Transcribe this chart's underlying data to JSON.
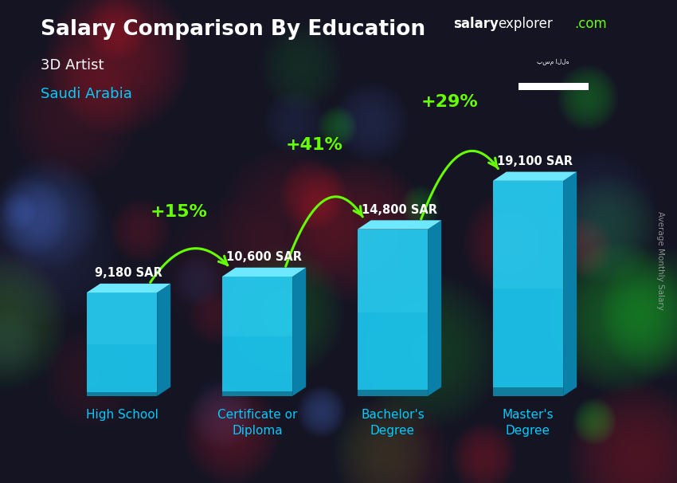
{
  "title": "Salary Comparison By Education",
  "subtitle_job": "3D Artist",
  "subtitle_country": "Saudi Arabia",
  "ylabel": "Average Monthly Salary",
  "categories": [
    "High School",
    "Certificate or\nDiploma",
    "Bachelor's\nDegree",
    "Master's\nDegree"
  ],
  "values": [
    9180,
    10600,
    14800,
    19100
  ],
  "value_labels": [
    "9,180 SAR",
    "10,600 SAR",
    "14,800 SAR",
    "19,100 SAR"
  ],
  "pct_changes": [
    "+15%",
    "+41%",
    "+29%"
  ],
  "bar_front_color": "#1cc8f0",
  "bar_side_color": "#0a7fa8",
  "bar_top_color": "#6ee8ff",
  "bar_bottom_shadow": "#0a5570",
  "arrow_color": "#66ff00",
  "pct_color": "#66ff00",
  "title_color": "#ffffff",
  "subtitle_job_color": "#ffffff",
  "subtitle_country_color": "#00ccff",
  "value_label_color": "#ffffff",
  "xlabel_color": "#00ccff",
  "bg_dark": "#111118",
  "ylim": [
    0,
    24000
  ],
  "brand_salary": "salary",
  "brand_explorer": "explorer",
  "brand_com": ".com",
  "brand_salary_color": "#ffffff",
  "brand_explorer_color": "#ffffff",
  "brand_com_color": "#66ff00",
  "right_label_color": "#aaaaaa",
  "flag_green": "#006c35",
  "flag_white": "#ffffff"
}
